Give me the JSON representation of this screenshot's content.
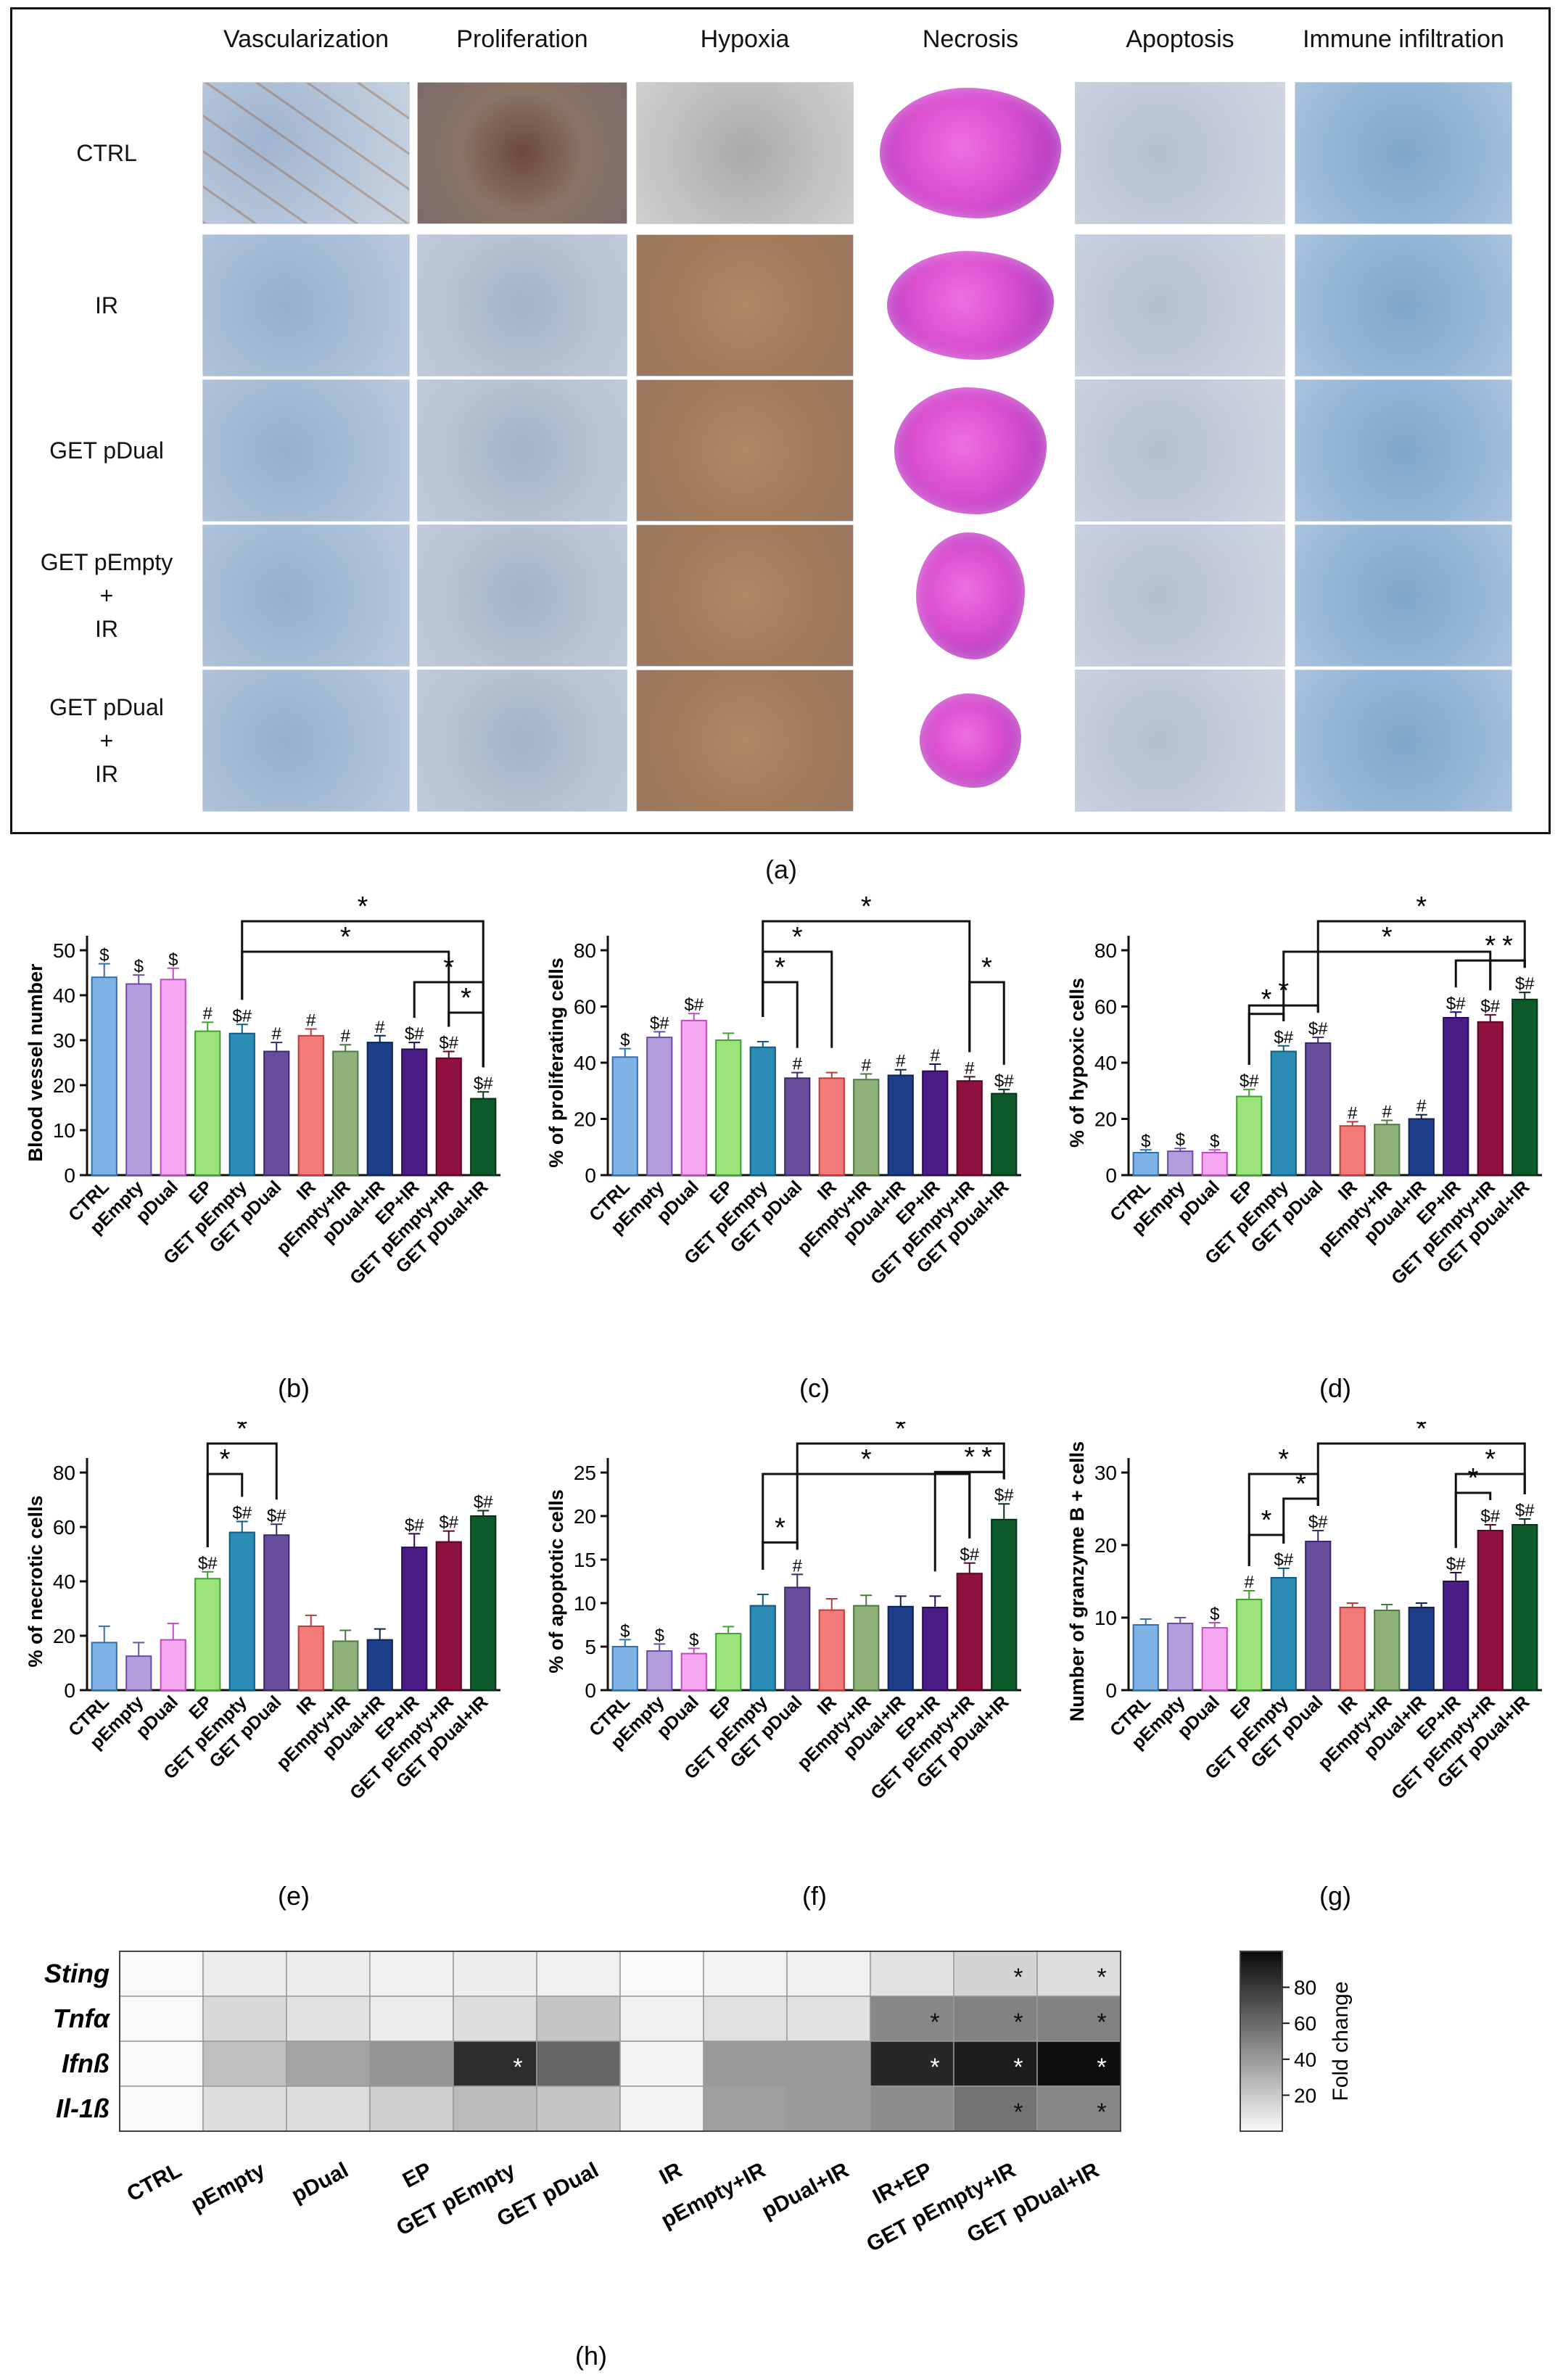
{
  "panel_a": {
    "columns": [
      "Vascularization",
      "Proliferation",
      "Hypoxia",
      "Necrosis",
      "Apoptosis",
      "Immune infiltration"
    ],
    "rows": [
      [
        "CTRL"
      ],
      [
        "IR"
      ],
      [
        "GET pDual"
      ],
      [
        "GET pEmpty",
        "+",
        "IR"
      ],
      [
        "GET pDual",
        "+",
        "IR"
      ]
    ],
    "label": "(a)"
  },
  "chart_data": [
    {
      "id": "b",
      "type": "bar",
      "label": "(b)",
      "ylabel": "Blood vessel number",
      "ylim": [
        0,
        50
      ],
      "yticks": [
        0,
        10,
        20,
        30,
        40,
        50
      ],
      "categories": [
        "CTRL",
        "pEmpty",
        "pDual",
        "EP",
        "GET pEmpty",
        "GET pDual",
        "IR",
        "pEmpty+IR",
        "pDual+IR",
        "EP+IR",
        "GET pEmpty+IR",
        "GET pDual+IR"
      ],
      "values": [
        44,
        42.5,
        43.5,
        32,
        31.5,
        27.5,
        31,
        27.5,
        29.5,
        28,
        26,
        17
      ],
      "errors": [
        3,
        2,
        2.5,
        2,
        2,
        2,
        1.5,
        1.5,
        1.5,
        1.5,
        1.5,
        1.5
      ],
      "marks": [
        "$",
        "$",
        "$",
        "#",
        "$#",
        "#",
        "#",
        "#",
        "#",
        "$#",
        "$#",
        "$#"
      ],
      "brackets": [
        {
          "from": 4,
          "to": 11,
          "level": 0
        },
        {
          "from": 4,
          "to": 10,
          "level": 1
        },
        {
          "from": 9,
          "to": 11,
          "level": 2
        },
        {
          "from": 10,
          "to": 11,
          "level": 3
        }
      ]
    },
    {
      "id": "c",
      "type": "bar",
      "label": "(c)",
      "ylabel": "% of proliferating cells",
      "ylim": [
        0,
        80
      ],
      "yticks": [
        0,
        20,
        40,
        60,
        80
      ],
      "categories": [
        "CTRL",
        "pEmpty",
        "pDual",
        "EP",
        "GET pEmpty",
        "GET pDual",
        "IR",
        "pEmpty+IR",
        "pDual+IR",
        "EP+IR",
        "GET pEmpty+IR",
        "GET pDual+IR"
      ],
      "values": [
        42,
        49,
        55,
        48,
        45.5,
        34.5,
        34.5,
        34,
        35.5,
        37,
        33.5,
        29
      ],
      "errors": [
        3,
        2,
        2.5,
        2.5,
        2,
        2,
        2,
        2,
        2,
        2.5,
        1.5,
        1.5
      ],
      "marks": [
        "$",
        "$#",
        "$#",
        "",
        "",
        "#",
        "",
        "#",
        "#",
        "#",
        "#",
        "$#"
      ],
      "brackets": [
        {
          "from": 4,
          "to": 10,
          "level": 0
        },
        {
          "from": 4,
          "to": 6,
          "level": 1
        },
        {
          "from": 4,
          "to": 5,
          "level": 2
        },
        {
          "from": 10,
          "to": 11,
          "level": 2
        }
      ]
    },
    {
      "id": "d",
      "type": "bar",
      "label": "(d)",
      "ylabel": "% of hypoxic cells",
      "ylim": [
        0,
        80
      ],
      "yticks": [
        0,
        20,
        40,
        60,
        80
      ],
      "categories": [
        "CTRL",
        "pEmpty",
        "pDual",
        "EP",
        "GET pEmpty",
        "GET pDual",
        "IR",
        "pEmpty+IR",
        "pDual+IR",
        "EP+IR",
        "GET pEmpty+IR",
        "GET pDual+IR"
      ],
      "values": [
        8,
        8.5,
        8,
        28,
        44,
        47,
        17.5,
        18,
        20,
        56,
        54.5,
        62.5
      ],
      "errors": [
        1,
        1,
        1,
        2.5,
        2,
        2,
        1.5,
        1.5,
        1.5,
        2,
        2.5,
        2.5
      ],
      "marks": [
        "$",
        "$",
        "$",
        "$#",
        "$#",
        "$#",
        "#",
        "#",
        "#",
        "$#",
        "$#",
        "$#"
      ],
      "brackets": [
        {
          "from": 5,
          "to": 11,
          "level": 0
        },
        {
          "from": 4,
          "to": 10,
          "level": 1
        },
        {
          "from": 9,
          "to": 11,
          "level": 2
        },
        {
          "from": 3,
          "to": 5,
          "level": 3
        },
        {
          "from": 10,
          "to": 11,
          "level": 3
        },
        {
          "from": 3,
          "to": 4,
          "level": 4
        }
      ]
    },
    {
      "id": "e",
      "type": "bar",
      "label": "(e)",
      "ylabel": "% of necrotic cells",
      "ylim": [
        0,
        80
      ],
      "yticks": [
        0,
        20,
        40,
        60,
        80
      ],
      "categories": [
        "CTRL",
        "pEmpty",
        "pDual",
        "EP",
        "GET pEmpty",
        "GET pDual",
        "IR",
        "pEmpty+IR",
        "pDual+IR",
        "EP+IR",
        "GET pEmpty+IR",
        "GET pDual+IR"
      ],
      "values": [
        17.5,
        12.5,
        18.5,
        41,
        58,
        57,
        23.5,
        18,
        18.5,
        52.5,
        54.5,
        64
      ],
      "errors": [
        6,
        5,
        6,
        2.5,
        4,
        4,
        4,
        4,
        4,
        5,
        4,
        2
      ],
      "marks": [
        "",
        "",
        "",
        "$#",
        "$#",
        "$#",
        "",
        "",
        "",
        "$#",
        "$#",
        "$#"
      ],
      "brackets": [
        {
          "from": 3,
          "to": 5,
          "level": 0
        },
        {
          "from": 3,
          "to": 4,
          "level": 1
        }
      ]
    },
    {
      "id": "f",
      "type": "bar",
      "label": "(f)",
      "ylabel": "% of apoptotic cells",
      "ylim": [
        0,
        25
      ],
      "yticks": [
        0,
        5,
        10,
        15,
        20,
        25
      ],
      "categories": [
        "CTRL",
        "pEmpty",
        "pDual",
        "EP",
        "GET pEmpty",
        "GET pDual",
        "IR",
        "pEmpty+IR",
        "pDual+IR",
        "EP+IR",
        "GET pEmpty+IR",
        "GET pDual+IR"
      ],
      "values": [
        5,
        4.5,
        4.2,
        6.5,
        9.7,
        11.8,
        9.2,
        9.7,
        9.6,
        9.5,
        13.4,
        19.6
      ],
      "errors": [
        0.8,
        0.8,
        0.6,
        0.8,
        1.3,
        1.5,
        1.3,
        1.2,
        1.2,
        1.3,
        1.2,
        1.8
      ],
      "marks": [
        "$",
        "$",
        "$",
        "",
        "",
        "#",
        "",
        "",
        "",
        "",
        "$#",
        "$#"
      ],
      "brackets": [
        {
          "from": 5,
          "to": 11,
          "level": 0
        },
        {
          "from": 4,
          "to": 10,
          "level": 1
        },
        {
          "from": 9,
          "to": 11,
          "level": 2
        },
        {
          "from": 10,
          "to": 11,
          "level": 3
        },
        {
          "from": 4,
          "to": 5,
          "level": 4
        }
      ]
    },
    {
      "id": "g",
      "type": "bar",
      "label": "(g)",
      "ylabel": "Number of granzyme B + cells",
      "ylim": [
        0,
        30
      ],
      "yticks": [
        0,
        10,
        20,
        30
      ],
      "categories": [
        "CTRL",
        "pEmpty",
        "pDual",
        "EP",
        "GET pEmpty",
        "GET pDual",
        "IR",
        "pEmpty+IR",
        "pDual+IR",
        "EP+IR",
        "GET pEmpty+IR",
        "GET pDual+IR"
      ],
      "values": [
        9,
        9.2,
        8.6,
        12.5,
        15.5,
        20.5,
        11.4,
        11,
        11.4,
        15,
        22,
        22.8
      ],
      "errors": [
        0.8,
        0.8,
        0.7,
        1.2,
        1.3,
        1.5,
        0.6,
        0.8,
        0.6,
        1.2,
        0.8,
        0.8
      ],
      "marks": [
        "",
        "",
        "$",
        "#",
        "$#",
        "$#",
        "",
        "",
        "",
        "$#",
        "$#",
        "$#"
      ],
      "brackets": [
        {
          "from": 5,
          "to": 11,
          "level": 0
        },
        {
          "from": 3,
          "to": 5,
          "level": 1
        },
        {
          "from": 9,
          "to": 11,
          "level": 1
        },
        {
          "from": 4,
          "to": 5,
          "level": 2
        },
        {
          "from": 9,
          "to": 10,
          "level": 2
        },
        {
          "from": 3,
          "to": 4,
          "level": 3
        }
      ]
    },
    {
      "id": "h",
      "type": "heatmap",
      "label": "(h)",
      "rows": [
        "Sting",
        "Tnfα",
        "Ifnß",
        "Il-1ß"
      ],
      "columns": [
        "CTRL",
        "pEmpty",
        "pDual",
        "EP",
        "GET pEmpty",
        "GET pDual",
        "IR",
        "pEmpty+IR",
        "pDual+IR",
        "IR+EP",
        "GET pEmpty+IR",
        "GET pDual+IR"
      ],
      "values": [
        [
          1,
          6,
          6,
          4,
          5,
          4,
          1,
          3,
          4,
          10,
          16,
          12
        ],
        [
          1,
          14,
          10,
          6,
          12,
          22,
          4,
          11,
          10,
          48,
          50,
          50
        ],
        [
          1,
          24,
          36,
          42,
          86,
          62,
          2,
          40,
          40,
          88,
          92,
          98
        ],
        [
          1,
          12,
          12,
          18,
          26,
          22,
          3,
          38,
          40,
          46,
          56,
          48
        ]
      ],
      "significant": [
        [
          false,
          false,
          false,
          false,
          false,
          false,
          false,
          false,
          false,
          false,
          true,
          true
        ],
        [
          false,
          false,
          false,
          false,
          false,
          false,
          false,
          false,
          false,
          true,
          true,
          true
        ],
        [
          false,
          false,
          false,
          false,
          true,
          false,
          false,
          false,
          false,
          true,
          true,
          true
        ],
        [
          false,
          false,
          false,
          false,
          false,
          false,
          false,
          false,
          false,
          false,
          true,
          true
        ]
      ],
      "colorbar": {
        "label": "Fold change",
        "ticks": [
          20,
          40,
          60,
          80
        ],
        "range": [
          0,
          100
        ]
      }
    }
  ]
}
